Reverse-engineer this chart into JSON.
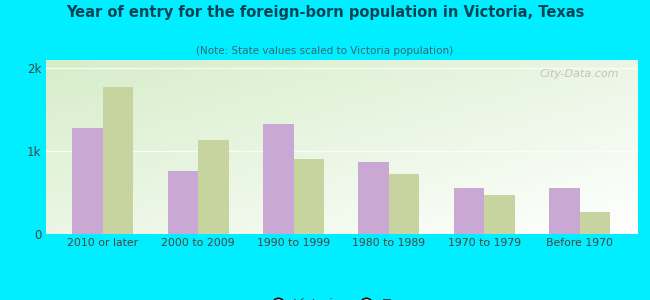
{
  "title": "Year of entry for the foreign-born population in Victoria, Texas",
  "subtitle": "(Note: State values scaled to Victoria population)",
  "categories": [
    "2010 or later",
    "2000 to 2009",
    "1990 to 1999",
    "1980 to 1989",
    "1970 to 1979",
    "Before 1970"
  ],
  "victoria_values": [
    1280,
    760,
    1330,
    870,
    550,
    560
  ],
  "texas_values": [
    1780,
    1130,
    900,
    720,
    470,
    270
  ],
  "victoria_color": "#c9a8d4",
  "texas_color": "#c8d4a0",
  "background_outer": "#00eeff",
  "bar_width": 0.32,
  "ylim": [
    0,
    2100
  ],
  "yticks": [
    0,
    1000,
    2000
  ],
  "ytick_labels": [
    "0",
    "1k",
    "2k"
  ],
  "legend_labels": [
    "Victoria",
    "Texas"
  ],
  "watermark": "City-Data.com"
}
